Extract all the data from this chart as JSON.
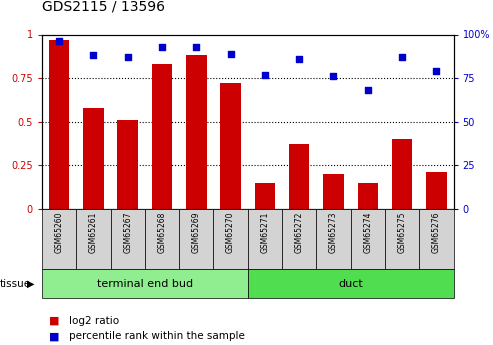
{
  "title": "GDS2115 / 13596",
  "categories": [
    "GSM65260",
    "GSM65261",
    "GSM65267",
    "GSM65268",
    "GSM65269",
    "GSM65270",
    "GSM65271",
    "GSM65272",
    "GSM65273",
    "GSM65274",
    "GSM65275",
    "GSM65276"
  ],
  "log2_ratio": [
    0.97,
    0.58,
    0.51,
    0.83,
    0.88,
    0.72,
    0.15,
    0.37,
    0.2,
    0.15,
    0.4,
    0.21
  ],
  "percentile_rank": [
    96,
    88,
    87,
    93,
    93,
    89,
    77,
    86,
    76,
    68,
    87,
    79
  ],
  "bar_color": "#cc0000",
  "dot_color": "#0000cc",
  "tissue_groups": [
    {
      "label": "terminal end bud",
      "start": 0,
      "end": 6,
      "color": "#90ee90"
    },
    {
      "label": "duct",
      "start": 6,
      "end": 12,
      "color": "#50dd50"
    }
  ],
  "ylim_left": [
    0,
    1.0
  ],
  "ylim_right": [
    0,
    100
  ],
  "yticks_left": [
    0,
    0.25,
    0.5,
    0.75,
    1.0
  ],
  "ytick_labels_left": [
    "0",
    "0.25",
    "0.5",
    "0.75",
    "1"
  ],
  "yticks_right": [
    0,
    25,
    50,
    75,
    100
  ],
  "ytick_labels_right": [
    "0",
    "25",
    "50",
    "75",
    "100%"
  ],
  "bg_color": "#d3d3d3",
  "plot_bg": "#ffffff",
  "legend_items": [
    {
      "label": "log2 ratio",
      "color": "#cc0000"
    },
    {
      "label": "percentile rank within the sample",
      "color": "#0000cc"
    }
  ]
}
